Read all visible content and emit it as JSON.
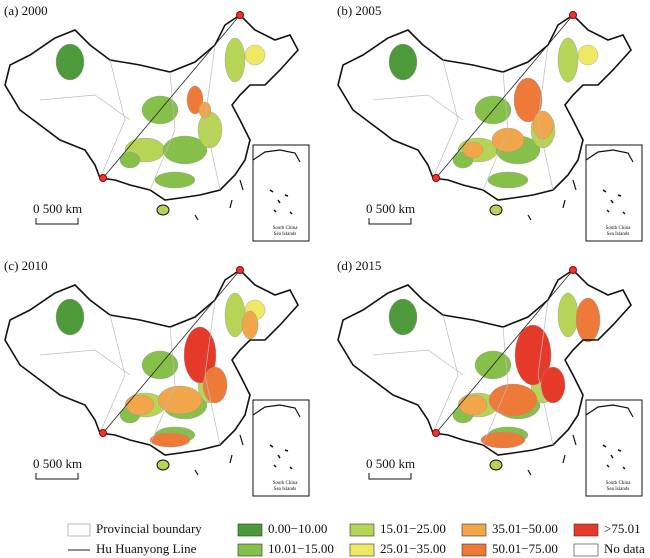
{
  "panels": [
    {
      "label": "(a) 2000"
    },
    {
      "label": "(b) 2005"
    },
    {
      "label": "(c) 2010"
    },
    {
      "label": "(d) 2015"
    }
  ],
  "scale_bar": "0  500 km",
  "inset_label": [
    "South China",
    "Sea Islands"
  ],
  "legend": {
    "lines": [
      {
        "label": "Provincial boundary",
        "kind": "box",
        "color": "#bbbbbb"
      },
      {
        "label": "Hu Huanyong Line",
        "kind": "line",
        "color": "#222222"
      }
    ],
    "classes": [
      {
        "label": "0.00−10.00",
        "color": "#4e9a3a"
      },
      {
        "label": "10.01−15.00",
        "color": "#86bf4a"
      },
      {
        "label": "15.01−25.00",
        "color": "#b6d455"
      },
      {
        "label": "25.01−35.00",
        "color": "#eee864"
      },
      {
        "label": "35.01−50.00",
        "color": "#f2a64a"
      },
      {
        "label": "50.01−75.00",
        "color": "#ee7a3a"
      },
      {
        "label": ">75.01",
        "color": "#e53a2a"
      },
      {
        "label": "No data",
        "color": "#ffffff"
      }
    ]
  }
}
